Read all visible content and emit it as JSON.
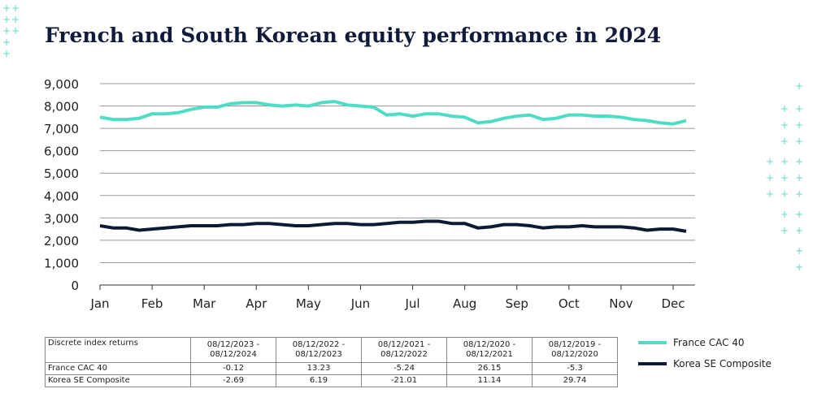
{
  "chart_data": {
    "type": "line",
    "title": "French and South Korean equity performance in 2024",
    "x": [
      0,
      0.25,
      0.5,
      0.75,
      1,
      1.25,
      1.5,
      1.75,
      2,
      2.25,
      2.5,
      2.75,
      3,
      3.25,
      3.5,
      3.75,
      4,
      4.25,
      4.5,
      4.75,
      5,
      5.25,
      5.5,
      5.75,
      6,
      6.25,
      6.5,
      6.75,
      7,
      7.25,
      7.5,
      7.75,
      8,
      8.25,
      8.5,
      8.75,
      9,
      9.25,
      9.5,
      9.75,
      10,
      10.25,
      10.5,
      10.75,
      11,
      11.25
    ],
    "xlim": [
      0,
      11.42
    ],
    "xticks": [
      {
        "value": 0,
        "label": "Jan"
      },
      {
        "value": 1,
        "label": "Feb"
      },
      {
        "value": 2,
        "label": "Mar"
      },
      {
        "value": 3,
        "label": "Apr"
      },
      {
        "value": 4,
        "label": "May"
      },
      {
        "value": 5,
        "label": "Jun"
      },
      {
        "value": 6,
        "label": "Jul"
      },
      {
        "value": 7,
        "label": "Aug"
      },
      {
        "value": 8,
        "label": "Sep"
      },
      {
        "value": 9,
        "label": "Oct"
      },
      {
        "value": 10,
        "label": "Nov"
      },
      {
        "value": 11,
        "label": "Dec"
      }
    ],
    "ylim": [
      0,
      9000
    ],
    "yticks": [
      0,
      {
        "value": 1000,
        "label": "1,000"
      },
      {
        "value": 2000,
        "label": "2,000"
      },
      {
        "value": 3000,
        "label": "3,000"
      },
      {
        "value": 4000,
        "label": "4,000"
      },
      {
        "value": 5000,
        "label": "5,000"
      },
      {
        "value": 6000,
        "label": "6,000"
      },
      {
        "value": 7000,
        "label": "7,000"
      },
      {
        "value": 8000,
        "label": "8,000"
      },
      {
        "value": 9000,
        "label": "9,000"
      }
    ],
    "grid": true,
    "series": [
      {
        "name": "France CAC 40",
        "color": "#4fdcc4",
        "values": [
          7500,
          7400,
          7400,
          7450,
          7650,
          7650,
          7700,
          7850,
          7950,
          7950,
          8100,
          8150,
          8150,
          8050,
          8000,
          8050,
          8000,
          8150,
          8200,
          8050,
          8000,
          7950,
          7600,
          7650,
          7550,
          7650,
          7650,
          7550,
          7500,
          7250,
          7300,
          7450,
          7550,
          7600,
          7400,
          7450,
          7600,
          7600,
          7550,
          7550,
          7500,
          7400,
          7350,
          7250,
          7200,
          7350
        ]
      },
      {
        "name": "Korea SE Composite",
        "color": "#0d1a33",
        "values": [
          2650,
          2550,
          2550,
          2450,
          2500,
          2550,
          2600,
          2650,
          2650,
          2650,
          2700,
          2700,
          2750,
          2750,
          2700,
          2650,
          2650,
          2700,
          2750,
          2750,
          2700,
          2700,
          2750,
          2800,
          2800,
          2850,
          2850,
          2750,
          2750,
          2550,
          2600,
          2700,
          2700,
          2650,
          2550,
          2600,
          2600,
          2650,
          2600,
          2600,
          2600,
          2550,
          2450,
          2500,
          2500,
          2400
        ]
      }
    ],
    "table": {
      "header": [
        "Discrete index returns",
        "08/12/2023 - 08/12/2024",
        "08/12/2022 - 08/12/2023",
        "08/12/2021 - 08/12/2022",
        "08/12/2020 - 08/12/2021",
        "08/12/2019 - 08/12/2020"
      ],
      "rows": [
        [
          "France CAC 40",
          "-0.12",
          "13.23",
          "-5.24",
          "26.15",
          "-5.3"
        ],
        [
          "Korea SE Composite",
          "-2.69",
          "6.19",
          "-21.01",
          "11.14",
          "29.74"
        ]
      ]
    }
  }
}
